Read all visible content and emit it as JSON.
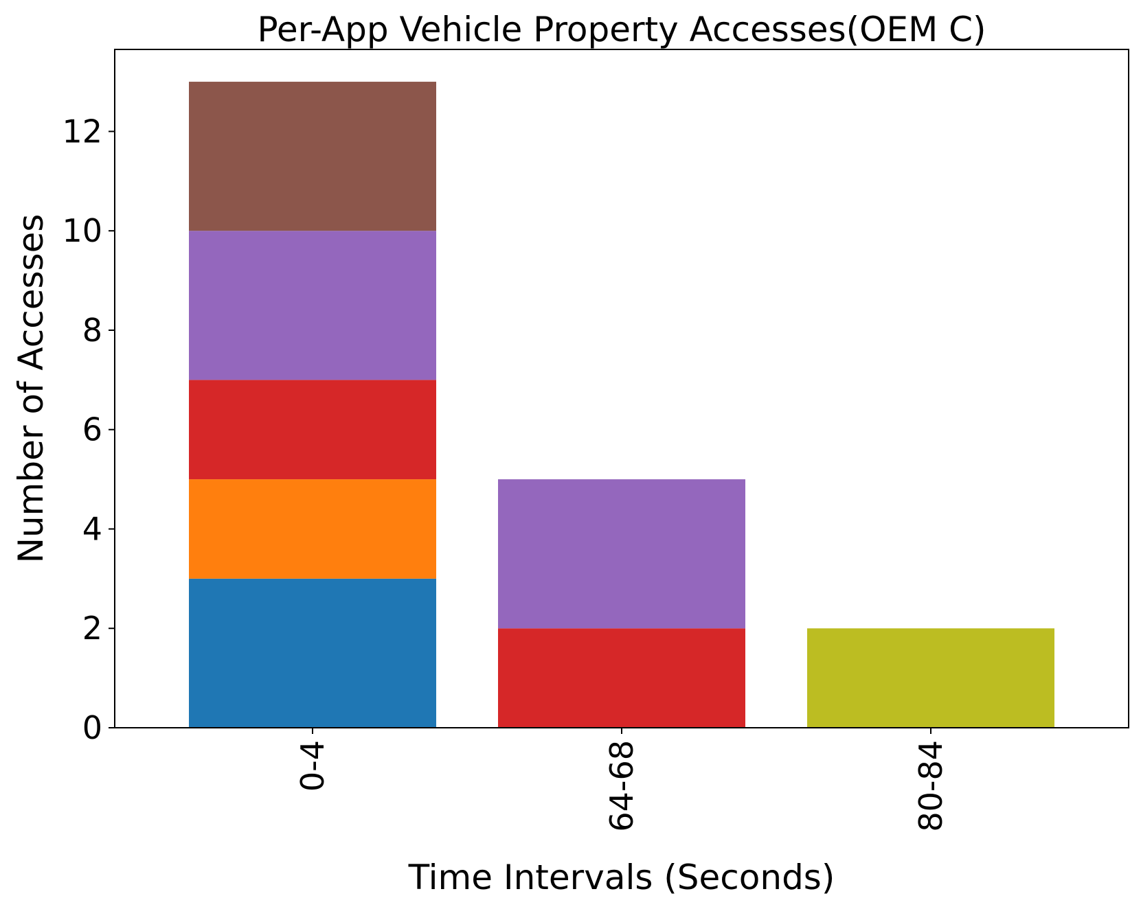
{
  "chart_data": {
    "type": "stacked_bar",
    "title": "Per-App Vehicle Property Accesses(OEM C)",
    "x_label": "Time Intervals (Seconds)",
    "y_label": "Number of Accesses",
    "categories": [
      "0-4",
      "64-68",
      "80-84"
    ],
    "series": [
      {
        "color": "#1f77b4",
        "values": [
          3,
          0,
          0
        ]
      },
      {
        "color": "#ff7f0e",
        "values": [
          2,
          0,
          0
        ]
      },
      {
        "color": "#d62728",
        "values": [
          2,
          2,
          0
        ]
      },
      {
        "color": "#9467bd",
        "values": [
          3,
          3,
          0
        ]
      },
      {
        "color": "#8c564b",
        "values": [
          3,
          0,
          0
        ]
      },
      {
        "color": "#bcbd22",
        "values": [
          0,
          0,
          2
        ]
      }
    ],
    "ylim": [
      0,
      13.65
    ],
    "yticks": [
      0,
      2,
      4,
      6,
      8,
      10,
      12
    ],
    "grid": false
  }
}
